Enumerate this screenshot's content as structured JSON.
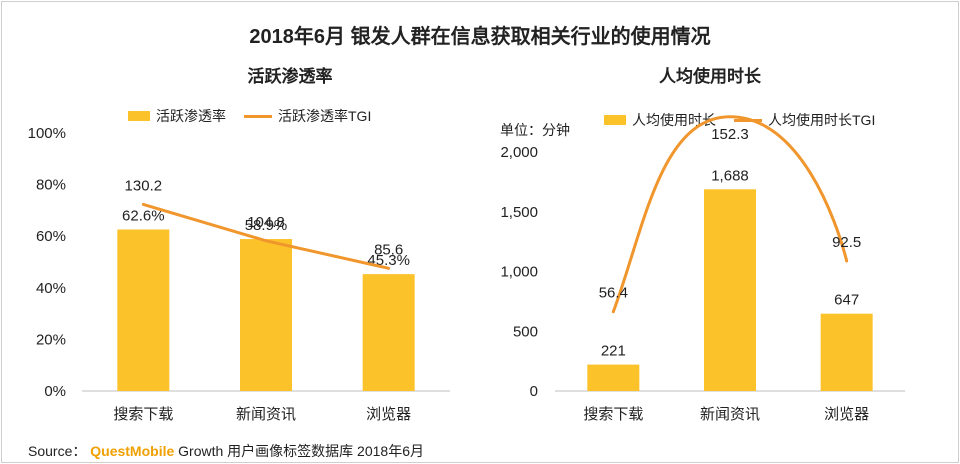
{
  "main_title": "2018年6月 银发人群在信息获取相关行业的使用情况",
  "colors": {
    "bar": "#FBC22A",
    "line": "#F0962C",
    "axis": "#bfbfbf"
  },
  "source": {
    "prefix": "Source：",
    "brand": "QuestMobile",
    "rest": "Growth 用户画像标签数据库 2018年6月"
  },
  "chart_data": [
    {
      "type": "bar",
      "title": "活跃渗透率",
      "categories": [
        "搜索下载",
        "新闻资讯",
        "浏览器"
      ],
      "ylim": [
        0,
        100
      ],
      "ytick_labels": [
        "0%",
        "20%",
        "40%",
        "60%",
        "80%",
        "100%"
      ],
      "ytick_values": [
        0,
        20,
        40,
        60,
        80,
        100
      ],
      "series": [
        {
          "name": "活跃渗透率",
          "kind": "bar",
          "values": [
            62.6,
            58.9,
            45.3
          ],
          "labels": [
            "62.6%",
            "58.9%",
            "45.3%"
          ]
        },
        {
          "name": "活跃渗透率TGI",
          "kind": "line",
          "values": [
            130.2,
            104.8,
            85.6
          ],
          "labels": [
            "130.2",
            "104.8",
            "85.6"
          ]
        }
      ]
    },
    {
      "type": "bar",
      "title": "人均使用时长",
      "unit": "单位：分钟",
      "categories": [
        "搜索下载",
        "新闻资讯",
        "浏览器"
      ],
      "ylim": [
        0,
        2000
      ],
      "ytick_labels": [
        "0",
        "500",
        "1,000",
        "1,500",
        "2,000"
      ],
      "ytick_values": [
        0,
        500,
        1000,
        1500,
        2000
      ],
      "series": [
        {
          "name": "人均使用时长",
          "kind": "bar",
          "values": [
            221,
            1688,
            647
          ],
          "labels": [
            "221",
            "1,688",
            "647"
          ]
        },
        {
          "name": "人均使用时长TGI",
          "kind": "line",
          "values": [
            56.4,
            152.3,
            92.5
          ],
          "labels": [
            "56.4",
            "152.3",
            "92.5"
          ]
        }
      ]
    }
  ]
}
